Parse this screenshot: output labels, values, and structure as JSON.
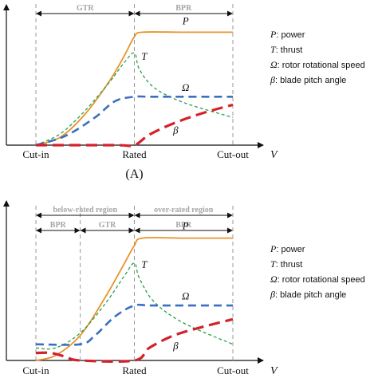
{
  "chart_data": [
    {
      "type": "line",
      "caption": "(A)",
      "xlabel": "V",
      "x_ticks": [
        "Cut-in",
        "Rated",
        "Cut-out"
      ],
      "regions": [
        {
          "label": "GTR",
          "from": 0.0,
          "to": 1.0
        },
        {
          "label": "BPR",
          "from": 1.0,
          "to": 2.0
        }
      ],
      "bands": [],
      "ylim": [
        0,
        1.08
      ],
      "xlim": [
        -0.1,
        2.15
      ],
      "series": [
        {
          "name": "P",
          "color": "#e8932a",
          "dash": "none",
          "width": 1.8,
          "x": [
            0,
            0.25,
            0.5,
            0.75,
            0.9,
            1.0,
            1.08,
            1.5,
            2.0
          ],
          "y": [
            0.0,
            0.07,
            0.27,
            0.56,
            0.78,
            0.94,
            0.98,
            0.98,
            0.98
          ]
        },
        {
          "name": "T",
          "color": "#2aa04a",
          "dash": "4,3",
          "width": 1.3,
          "x": [
            0,
            0.25,
            0.5,
            0.75,
            0.9,
            1.0,
            1.05,
            1.2,
            1.5,
            2.0
          ],
          "y": [
            0.0,
            0.1,
            0.3,
            0.55,
            0.72,
            0.8,
            0.66,
            0.5,
            0.37,
            0.24
          ]
        },
        {
          "name": "Ω",
          "color": "#3b6fbf",
          "dash": "10,6",
          "width": 2.6,
          "x": [
            0,
            0.3,
            0.6,
            0.8,
            1.0,
            1.2,
            2.0
          ],
          "y": [
            0.0,
            0.08,
            0.24,
            0.38,
            0.42,
            0.42,
            0.42
          ]
        },
        {
          "name": "β",
          "color": "#d2232a",
          "dash": "14,7",
          "width": 3.2,
          "x": [
            0,
            0.8,
            1.0,
            1.15,
            1.4,
            1.7,
            2.0
          ],
          "y": [
            0.0,
            0.0,
            0.0,
            0.09,
            0.19,
            0.28,
            0.35
          ]
        }
      ],
      "series_label_at": [
        {
          "name": "P",
          "x": 1.52,
          "y": 1.05
        },
        {
          "name": "T",
          "x": 1.1,
          "y": 0.74
        },
        {
          "name": "Ω",
          "x": 1.52,
          "y": 0.47
        },
        {
          "name": "β",
          "x": 1.42,
          "y": 0.1
        }
      ]
    },
    {
      "type": "line",
      "caption": "",
      "xlabel": "V",
      "x_ticks": [
        "Cut-in",
        "Rated",
        "Cut-out"
      ],
      "regions": [
        {
          "label": "BPR",
          "from": 0.0,
          "to": 0.45
        },
        {
          "label": "GTR",
          "from": 0.45,
          "to": 1.0
        },
        {
          "label": "BPR",
          "from": 1.0,
          "to": 2.0
        }
      ],
      "bands": [
        {
          "label": "below-rated region",
          "from": 0.0,
          "to": 1.0
        },
        {
          "label": "over-rated region",
          "from": 1.0,
          "to": 2.0
        }
      ],
      "ylim": [
        0,
        1.15
      ],
      "xlim": [
        -0.1,
        2.15
      ],
      "series": [
        {
          "name": "P",
          "color": "#e8932a",
          "dash": "none",
          "width": 1.8,
          "x": [
            0,
            0.2,
            0.45,
            0.7,
            0.9,
            1.0,
            1.08,
            1.5,
            2.0
          ],
          "y": [
            0.0,
            0.04,
            0.2,
            0.5,
            0.78,
            0.92,
            0.98,
            0.98,
            0.98
          ]
        },
        {
          "name": "T",
          "color": "#2aa04a",
          "dash": "4,3",
          "width": 1.3,
          "x": [
            0,
            0.2,
            0.45,
            0.7,
            0.9,
            1.0,
            1.05,
            1.2,
            1.5,
            2.0
          ],
          "y": [
            0.1,
            0.1,
            0.22,
            0.45,
            0.68,
            0.78,
            0.66,
            0.47,
            0.3,
            0.13
          ]
        },
        {
          "name": "Ω",
          "color": "#3b6fbf",
          "dash": "10,6",
          "width": 2.6,
          "x": [
            0,
            0.45,
            0.6,
            0.8,
            1.0,
            1.2,
            2.0
          ],
          "y": [
            0.13,
            0.13,
            0.2,
            0.35,
            0.44,
            0.44,
            0.44
          ]
        },
        {
          "name": "β",
          "color": "#d2232a",
          "dash": "14,7",
          "width": 3.2,
          "x": [
            0,
            0.15,
            0.3,
            0.45,
            1.0,
            1.15,
            1.4,
            1.7,
            2.0
          ],
          "y": [
            0.06,
            0.06,
            0.03,
            0.0,
            0.0,
            0.1,
            0.2,
            0.27,
            0.33
          ]
        }
      ],
      "series_label_at": [
        {
          "name": "P",
          "x": 1.52,
          "y": 1.05
        },
        {
          "name": "T",
          "x": 1.1,
          "y": 0.74
        },
        {
          "name": "Ω",
          "x": 1.52,
          "y": 0.49
        },
        {
          "name": "β",
          "x": 1.42,
          "y": 0.09
        }
      ]
    }
  ],
  "legend": [
    {
      "symbol": "P",
      "text": "power"
    },
    {
      "symbol": "T",
      "text": "thrust"
    },
    {
      "symbol": "Ω",
      "text": "rotor rotational speed"
    },
    {
      "symbol": "β",
      "text": "blade pitch angle"
    }
  ]
}
